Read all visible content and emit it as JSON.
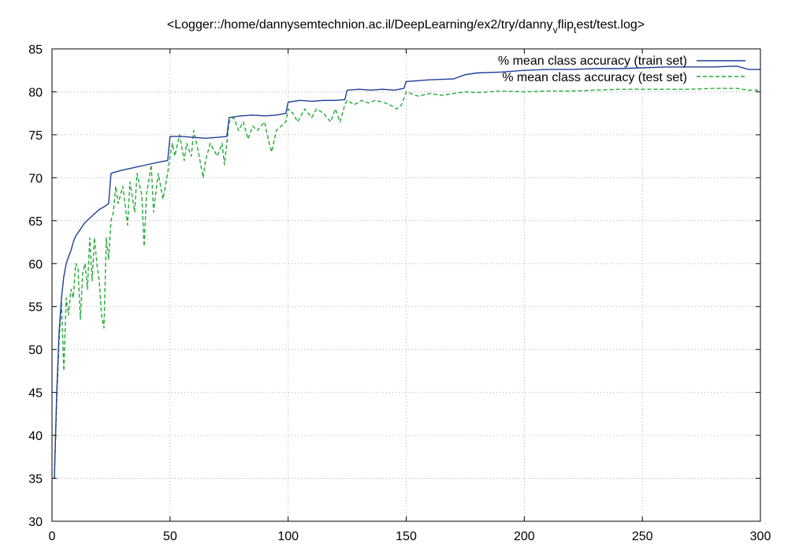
{
  "chart_data": {
    "type": "line",
    "title": "<Logger::/home/dannysemtechnion.ac.il/DeepLearning/ex2/try/danny_vflip_test/test.log>",
    "title_parts": {
      "pre": "<Logger::/home/dannysemtechnion.ac.il/DeepLearning/ex2/try/danny",
      "sub1": "v",
      "mid": "flip",
      "sub2": "t",
      "post": "est/test.log>"
    },
    "xlim": [
      0,
      300
    ],
    "ylim": [
      30,
      85
    ],
    "x_ticks": [
      "0",
      "50",
      "100",
      "150",
      "200",
      "250",
      "300"
    ],
    "y_ticks": [
      "30",
      "35",
      "40",
      "45",
      "50",
      "55",
      "60",
      "65",
      "70",
      "75",
      "80",
      "85"
    ],
    "grid": true,
    "legend_position": "top-right",
    "series": [
      {
        "name": "% mean class accuracy (train set)",
        "color": "#1f3f99",
        "style": "solid",
        "points": [
          [
            1,
            35.0
          ],
          [
            2,
            45.0
          ],
          [
            3,
            52.0
          ],
          [
            4,
            56.0
          ],
          [
            5,
            58.5
          ],
          [
            6,
            60.0
          ],
          [
            7,
            60.8
          ],
          [
            8,
            61.5
          ],
          [
            9,
            62.5
          ],
          [
            10,
            63.2
          ],
          [
            12,
            64.0
          ],
          [
            14,
            64.8
          ],
          [
            16,
            65.3
          ],
          [
            18,
            65.8
          ],
          [
            20,
            66.3
          ],
          [
            22,
            66.6
          ],
          [
            24,
            67.0
          ],
          [
            25,
            70.5
          ],
          [
            26,
            70.6
          ],
          [
            30,
            70.9
          ],
          [
            35,
            71.2
          ],
          [
            40,
            71.5
          ],
          [
            45,
            71.8
          ],
          [
            49,
            72.0
          ],
          [
            50,
            74.8
          ],
          [
            55,
            74.8
          ],
          [
            60,
            74.7
          ],
          [
            65,
            74.6
          ],
          [
            70,
            74.7
          ],
          [
            74,
            74.8
          ],
          [
            75,
            77.0
          ],
          [
            80,
            77.2
          ],
          [
            85,
            77.3
          ],
          [
            90,
            77.2
          ],
          [
            95,
            77.3
          ],
          [
            99,
            77.5
          ],
          [
            100,
            78.8
          ],
          [
            105,
            79.0
          ],
          [
            110,
            78.9
          ],
          [
            115,
            79.0
          ],
          [
            120,
            79.0
          ],
          [
            124,
            79.1
          ],
          [
            125,
            80.2
          ],
          [
            130,
            80.3
          ],
          [
            135,
            80.2
          ],
          [
            140,
            80.3
          ],
          [
            145,
            80.2
          ],
          [
            149,
            80.4
          ],
          [
            150,
            81.2
          ],
          [
            160,
            81.4
          ],
          [
            170,
            81.5
          ],
          [
            175,
            82.0
          ],
          [
            180,
            82.2
          ],
          [
            190,
            82.3
          ],
          [
            200,
            82.5
          ],
          [
            210,
            82.6
          ],
          [
            220,
            82.6
          ],
          [
            230,
            82.7
          ],
          [
            240,
            82.7
          ],
          [
            250,
            82.8
          ],
          [
            260,
            82.9
          ],
          [
            270,
            82.9
          ],
          [
            280,
            82.9
          ],
          [
            290,
            83.0
          ],
          [
            295,
            82.6
          ],
          [
            300,
            82.6
          ]
        ]
      },
      {
        "name": "% mean class accuracy (test set)",
        "color": "#22aa33",
        "style": "dashed",
        "points": [
          [
            1,
            35.0
          ],
          [
            2,
            44.0
          ],
          [
            3,
            51.0
          ],
          [
            4,
            55.5
          ],
          [
            5,
            47.5
          ],
          [
            6,
            56.0
          ],
          [
            7,
            54.0
          ],
          [
            8,
            57.0
          ],
          [
            9,
            56.0
          ],
          [
            10,
            60.0
          ],
          [
            11,
            59.5
          ],
          [
            12,
            53.5
          ],
          [
            13,
            59.0
          ],
          [
            14,
            60.0
          ],
          [
            15,
            57.0
          ],
          [
            16,
            63.0
          ],
          [
            17,
            58.0
          ],
          [
            18,
            63.0
          ],
          [
            19,
            60.0
          ],
          [
            20,
            58.0
          ],
          [
            21,
            54.0
          ],
          [
            22,
            52.5
          ],
          [
            23,
            63.0
          ],
          [
            24,
            60.5
          ],
          [
            25,
            65.0
          ],
          [
            26,
            66.0
          ],
          [
            27,
            69.0
          ],
          [
            28,
            67.0
          ],
          [
            30,
            69.0
          ],
          [
            32,
            64.5
          ],
          [
            33,
            69.5
          ],
          [
            35,
            66.0
          ],
          [
            36,
            70.5
          ],
          [
            38,
            68.0
          ],
          [
            39,
            62.0
          ],
          [
            40,
            68.0
          ],
          [
            42,
            71.5
          ],
          [
            43,
            66.0
          ],
          [
            45,
            70.5
          ],
          [
            47,
            67.5
          ],
          [
            49,
            70.5
          ],
          [
            50,
            72.5
          ],
          [
            51,
            74.0
          ],
          [
            52,
            72.5
          ],
          [
            54,
            75.0
          ],
          [
            56,
            72.0
          ],
          [
            57,
            74.0
          ],
          [
            59,
            72.5
          ],
          [
            60,
            75.5
          ],
          [
            62,
            73.0
          ],
          [
            64,
            70.0
          ],
          [
            65,
            72.0
          ],
          [
            67,
            74.0
          ],
          [
            70,
            72.5
          ],
          [
            72,
            74.0
          ],
          [
            73,
            71.5
          ],
          [
            75,
            76.5
          ],
          [
            77,
            77.0
          ],
          [
            79,
            75.5
          ],
          [
            81,
            76.5
          ],
          [
            83,
            74.5
          ],
          [
            85,
            76.0
          ],
          [
            87,
            75.5
          ],
          [
            90,
            76.5
          ],
          [
            92,
            74.0
          ],
          [
            93,
            73.0
          ],
          [
            95,
            75.5
          ],
          [
            97,
            76.0
          ],
          [
            99,
            76.5
          ],
          [
            100,
            78.0
          ],
          [
            102,
            77.5
          ],
          [
            104,
            76.5
          ],
          [
            107,
            78.0
          ],
          [
            110,
            77.0
          ],
          [
            112,
            78.0
          ],
          [
            115,
            77.5
          ],
          [
            118,
            76.5
          ],
          [
            120,
            78.0
          ],
          [
            122,
            76.5
          ],
          [
            124,
            78.5
          ],
          [
            125,
            79.0
          ],
          [
            128,
            78.5
          ],
          [
            131,
            79.0
          ],
          [
            134,
            78.7
          ],
          [
            137,
            79.0
          ],
          [
            140,
            78.8
          ],
          [
            143,
            78.5
          ],
          [
            146,
            78.0
          ],
          [
            148,
            78.5
          ],
          [
            150,
            80.0
          ],
          [
            155,
            79.5
          ],
          [
            160,
            79.8
          ],
          [
            165,
            79.6
          ],
          [
            170,
            79.8
          ],
          [
            175,
            80.0
          ],
          [
            180,
            79.9
          ],
          [
            190,
            80.1
          ],
          [
            200,
            80.0
          ],
          [
            210,
            80.1
          ],
          [
            220,
            80.1
          ],
          [
            230,
            80.2
          ],
          [
            240,
            80.3
          ],
          [
            250,
            80.3
          ],
          [
            260,
            80.3
          ],
          [
            270,
            80.3
          ],
          [
            280,
            80.4
          ],
          [
            290,
            80.4
          ],
          [
            295,
            80.2
          ],
          [
            300,
            80.2
          ]
        ]
      }
    ]
  }
}
